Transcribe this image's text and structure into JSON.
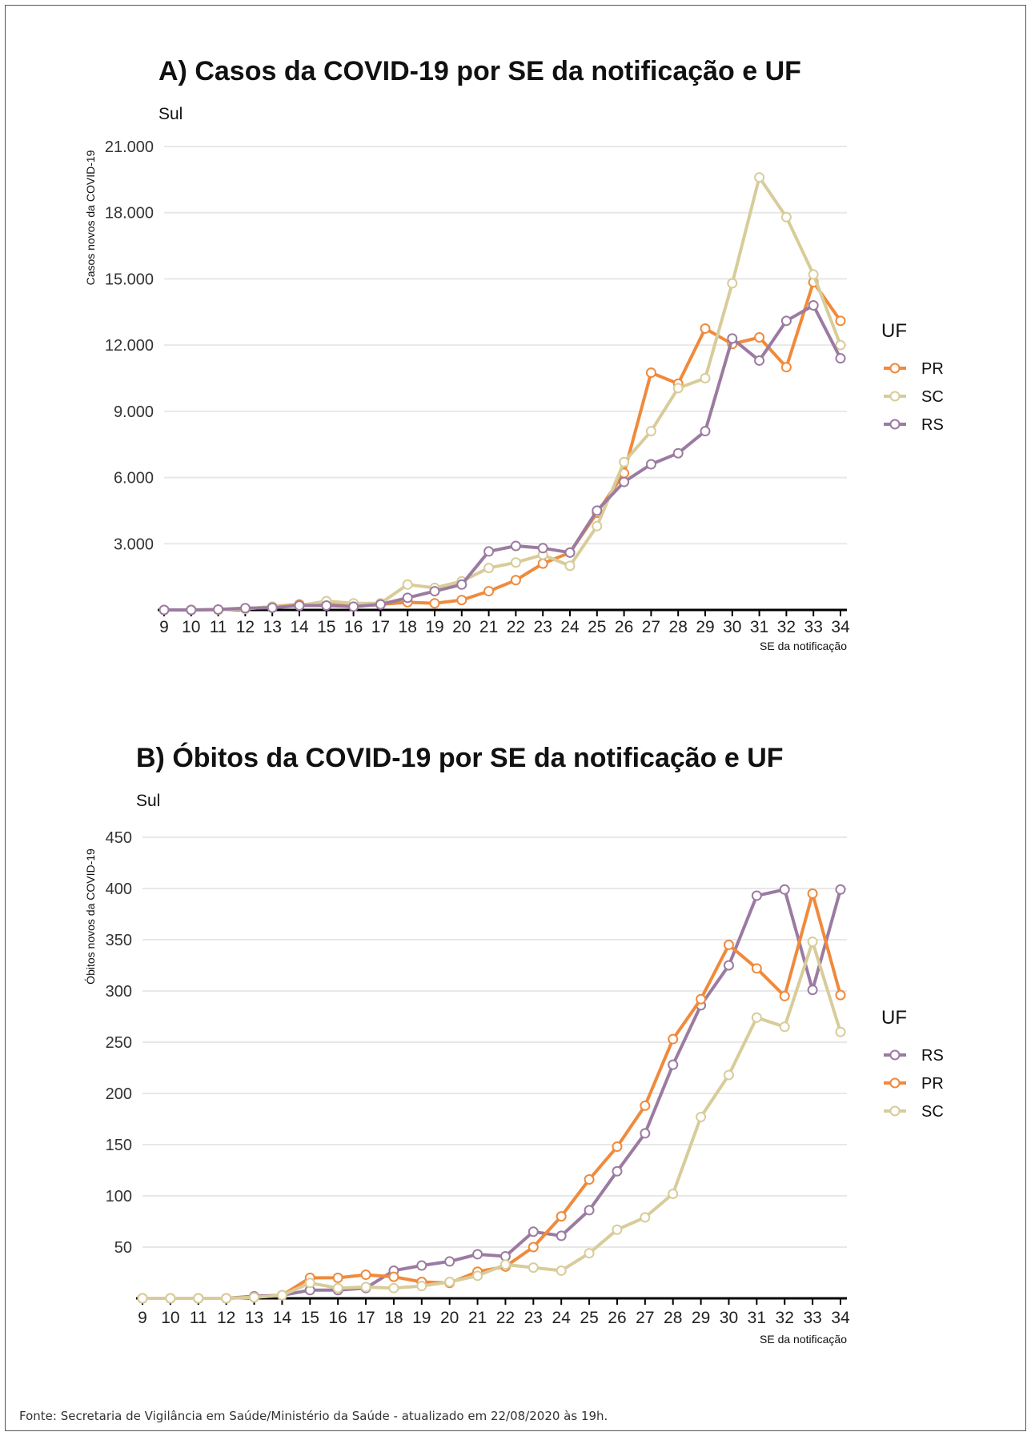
{
  "footer": "Fonte: Secretaria de Vigilância em Saúde/Ministério da Saúde - atualizado em 22/08/2020 às 19h.",
  "colors": {
    "PR": "#F08A3C",
    "SC": "#D8CC9A",
    "RS": "#9B7BA1",
    "grid": "#E8E8E8",
    "axis": "#000000"
  },
  "chart_data": [
    {
      "type": "line",
      "title": "A) Casos da COVID-19 por SE da notificação e UF",
      "subtitle": "Sul",
      "xlabel": "SE da notificação",
      "ylabel": "Casos novos da COVID-19",
      "x": [
        9,
        10,
        11,
        12,
        13,
        14,
        15,
        16,
        17,
        18,
        19,
        20,
        21,
        22,
        23,
        24,
        25,
        26,
        27,
        28,
        29,
        30,
        31,
        32,
        33,
        34
      ],
      "ylim": [
        0,
        21000
      ],
      "yticks": [
        3000,
        6000,
        9000,
        12000,
        15000,
        18000,
        21000
      ],
      "ytick_labels": [
        "3.000",
        "6.000",
        "9.000",
        "12.000",
        "15.000",
        "18.000",
        "21.000"
      ],
      "grid": true,
      "legend": {
        "title": "UF",
        "position": "right",
        "order": [
          "PR",
          "SC",
          "RS"
        ]
      },
      "series": [
        {
          "name": "PR",
          "values": [
            0,
            0,
            10,
            50,
            150,
            250,
            250,
            250,
            250,
            350,
            300,
            450,
            850,
            1350,
            2100,
            2600,
            4400,
            6200,
            10750,
            10250,
            12750,
            12050,
            12350,
            11000,
            14850,
            13100
          ]
        },
        {
          "name": "SC",
          "values": [
            0,
            0,
            10,
            50,
            150,
            200,
            400,
            300,
            300,
            1150,
            1000,
            1300,
            1900,
            2150,
            2500,
            2000,
            3800,
            6700,
            8100,
            10050,
            10500,
            14800,
            19600,
            17800,
            15200,
            12000
          ]
        },
        {
          "name": "RS",
          "values": [
            0,
            0,
            20,
            80,
            100,
            200,
            200,
            150,
            250,
            550,
            850,
            1150,
            2650,
            2900,
            2800,
            2600,
            4500,
            5800,
            6600,
            7100,
            8100,
            12300,
            11300,
            13100,
            13800,
            11400
          ]
        }
      ]
    },
    {
      "type": "line",
      "title": "B) Óbitos da COVID-19 por SE da notificação e UF",
      "subtitle": "Sul",
      "xlabel": "SE da notificação",
      "ylabel": "Óbitos novos da COVID-19",
      "x": [
        9,
        10,
        11,
        12,
        13,
        14,
        15,
        16,
        17,
        18,
        19,
        20,
        21,
        22,
        23,
        24,
        25,
        26,
        27,
        28,
        29,
        30,
        31,
        32,
        33,
        34
      ],
      "ylim": [
        0,
        450
      ],
      "yticks": [
        50,
        100,
        150,
        200,
        250,
        300,
        350,
        400,
        450
      ],
      "ytick_labels": [
        "50",
        "100",
        "150",
        "200",
        "250",
        "300",
        "350",
        "400",
        "450"
      ],
      "grid": true,
      "legend": {
        "title": "UF",
        "position": "right",
        "order": [
          "RS",
          "PR",
          "SC"
        ]
      },
      "series": [
        {
          "name": "RS",
          "values": [
            0,
            0,
            0,
            0,
            2,
            3,
            8,
            8,
            10,
            27,
            32,
            36,
            43,
            41,
            65,
            61,
            86,
            124,
            161,
            228,
            286,
            325,
            393,
            399,
            301,
            399
          ]
        },
        {
          "name": "PR",
          "values": [
            0,
            0,
            0,
            0,
            1,
            3,
            20,
            20,
            23,
            21,
            16,
            15,
            26,
            31,
            50,
            80,
            116,
            148,
            188,
            253,
            292,
            345,
            322,
            295,
            395,
            296
          ]
        },
        {
          "name": "SC",
          "values": [
            0,
            0,
            0,
            0,
            1,
            3,
            15,
            10,
            11,
            10,
            12,
            16,
            22,
            33,
            30,
            27,
            44,
            67,
            79,
            102,
            177,
            218,
            274,
            265,
            348,
            260
          ]
        }
      ]
    }
  ]
}
